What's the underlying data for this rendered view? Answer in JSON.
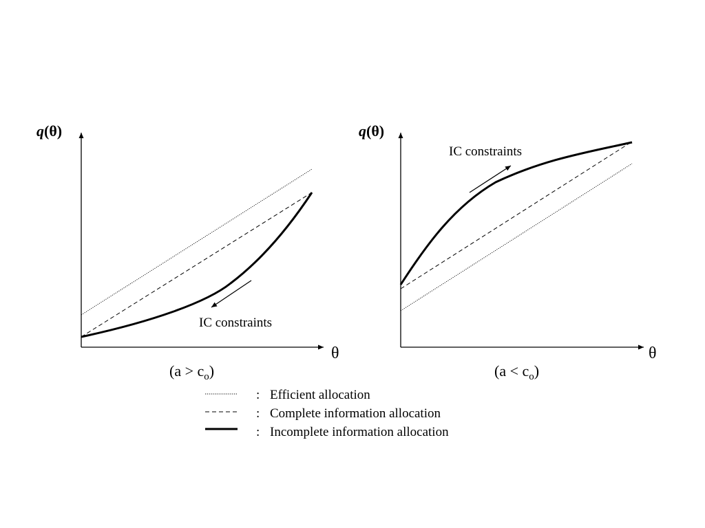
{
  "panels": [
    {
      "y_title_var": "q",
      "y_title_arg": "(θ)",
      "x_title": "θ",
      "condition_main": "(a > c",
      "condition_sub": "o",
      "condition_close": ")",
      "annotation": "IC constraints",
      "arrow_direction": "down-left"
    },
    {
      "y_title_var": "q",
      "y_title_arg": "(θ)",
      "x_title": "θ",
      "condition_main": "(a < c",
      "condition_sub": "o",
      "condition_close": ")",
      "annotation": "IC constraints",
      "arrow_direction": "up-right"
    }
  ],
  "legend": [
    {
      "style": "dotted",
      "separator": ":",
      "label": "Efficient allocation"
    },
    {
      "style": "dashed",
      "separator": ":",
      "label": "Complete information allocation"
    },
    {
      "style": "solid-thick",
      "separator": ":",
      "label": "Incomplete information allocation"
    }
  ],
  "colors": {
    "ink": "#000000",
    "background": "#ffffff"
  }
}
